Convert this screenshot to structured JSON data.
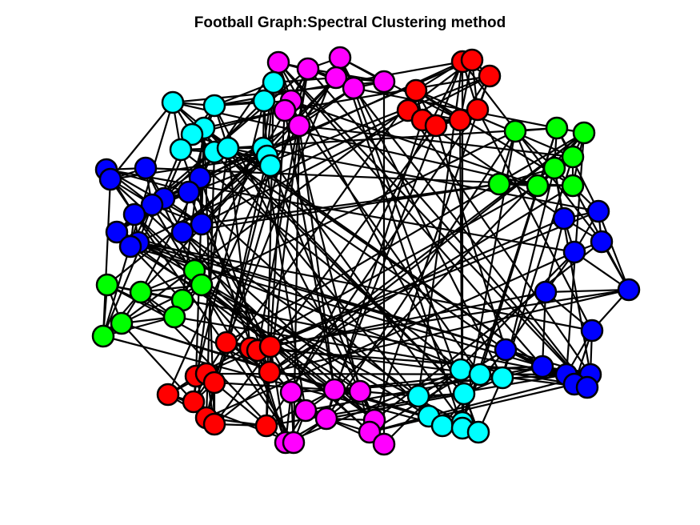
{
  "figure": {
    "title": "Football Graph:Spectral Clustering method"
  },
  "colors": {
    "edge": "#000000",
    "node_stroke": "#000000",
    "background": "#ffffff",
    "clusters": [
      "#ff0000",
      "#ff00ff",
      "#00ffff",
      "#0000ff",
      "#00ff00"
    ]
  },
  "graph": {
    "cluster_names": [
      "red",
      "magenta",
      "cyan",
      "blue",
      "green"
    ],
    "node_count": 115,
    "description_colors_note": "node fill encodes cluster membership"
  }
}
